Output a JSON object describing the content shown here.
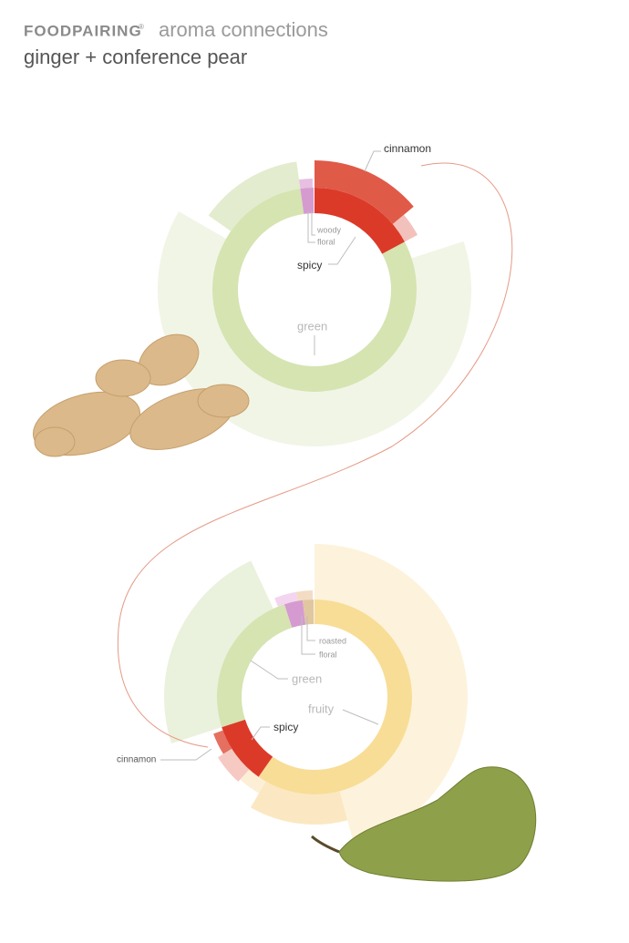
{
  "header": {
    "brand": "FOODPAIRING",
    "brand_mark": "®",
    "subtitle": "aroma connections",
    "title": "ginger + conference pear"
  },
  "top_wheel": {
    "labels": [
      "cinnamon",
      "woody",
      "floral",
      "spicy",
      "green"
    ]
  },
  "bottom_wheel": {
    "labels": [
      "roasted",
      "floral",
      "green",
      "fruity",
      "spicy",
      "cinnamon"
    ]
  }
}
